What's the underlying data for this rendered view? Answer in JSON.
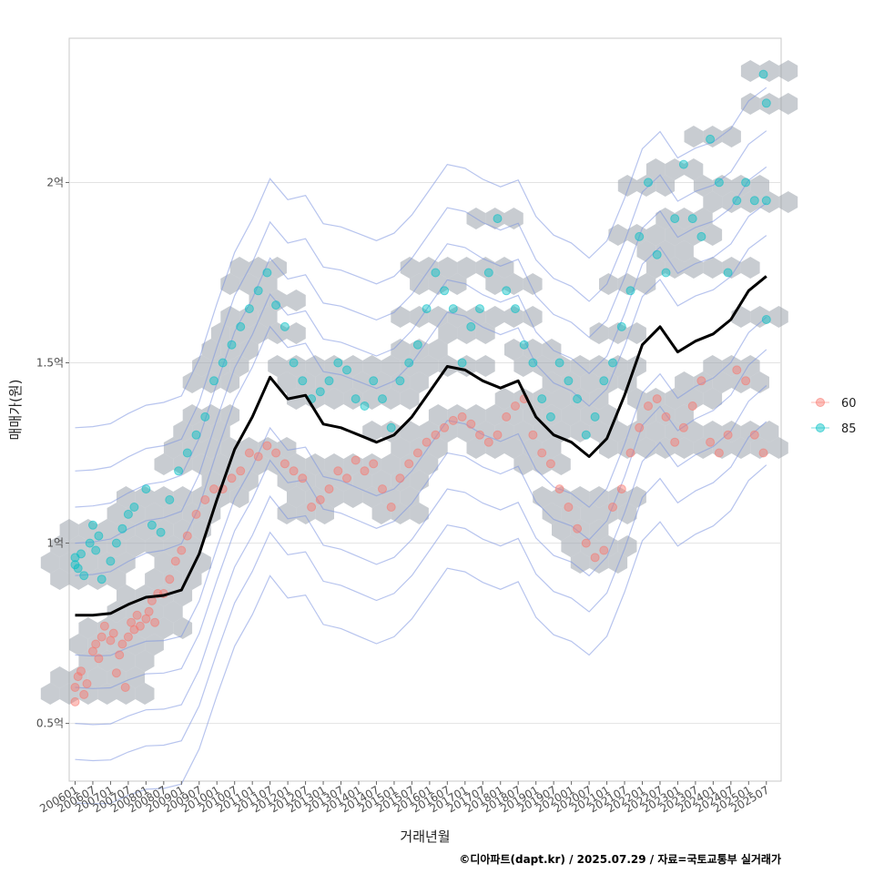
{
  "chart_data": {
    "type": "scatter",
    "title": "",
    "xlabel": "거래년월",
    "ylabel": "매매가(원)",
    "caption": "©디아파트(dapt.kr) / 2025.07.29 / 자료=국토교통부 실거래가",
    "x_ticks": [
      "200601",
      "200607",
      "200701",
      "200707",
      "200801",
      "200807",
      "200901",
      "200907",
      "201001",
      "201007",
      "201101",
      "201107",
      "201201",
      "201207",
      "201301",
      "201307",
      "201401",
      "201407",
      "201501",
      "201507",
      "201601",
      "201607",
      "201701",
      "201707",
      "201801",
      "201807",
      "201901",
      "201907",
      "202001",
      "202007",
      "202101",
      "202107",
      "202201",
      "202207",
      "202301",
      "202307",
      "202401",
      "202407",
      "202501",
      "202507"
    ],
    "y_ticks": [
      {
        "value": 50000000,
        "label": "0.5억"
      },
      {
        "value": 100000000,
        "label": "1억"
      },
      {
        "value": 150000000,
        "label": "1.5억"
      },
      {
        "value": 200000000,
        "label": "2억"
      }
    ],
    "xlim": [
      "200511",
      "202512"
    ],
    "ylim": [
      34000000,
      240000000
    ],
    "grid": true,
    "legend_position": "right",
    "legend": [
      {
        "label": "60",
        "color": "#F8766D"
      },
      {
        "label": "85",
        "color": "#00BFC4"
      }
    ],
    "colors": {
      "hex": "#9aa3ab",
      "contour": "#7b93e0",
      "trend": "#000000",
      "series_60": "#F8766D",
      "series_85": "#00BFC4"
    },
    "trend_line": {
      "name": "moving average",
      "x": [
        "200601",
        "200607",
        "200701",
        "200707",
        "200801",
        "200807",
        "200901",
        "200907",
        "201001",
        "201007",
        "201101",
        "201107",
        "201201",
        "201207",
        "201301",
        "201307",
        "201401",
        "201407",
        "201501",
        "201507",
        "201601",
        "201607",
        "201701",
        "201707",
        "201801",
        "201807",
        "201901",
        "201907",
        "202001",
        "202007",
        "202101",
        "202107",
        "202201",
        "202207",
        "202301",
        "202307",
        "202401",
        "202407",
        "202501",
        "202507"
      ],
      "y": [
        80000000,
        80000000,
        80500000,
        83000000,
        85000000,
        85500000,
        87000000,
        97000000,
        112000000,
        126000000,
        135000000,
        146000000,
        140000000,
        141000000,
        133000000,
        132000000,
        130000000,
        128000000,
        130000000,
        135000000,
        142000000,
        149000000,
        148000000,
        145000000,
        143000000,
        145000000,
        135000000,
        130000000,
        128000000,
        124000000,
        129000000,
        141000000,
        155000000,
        160000000,
        153000000,
        156000000,
        158000000,
        162000000,
        170000000,
        174000000
      ]
    },
    "series": [
      {
        "name": "60",
        "points": [
          [
            "200601",
            56000000
          ],
          [
            "200601",
            60000000
          ],
          [
            "200602",
            63000000
          ],
          [
            "200603",
            64500000
          ],
          [
            "200604",
            58000000
          ],
          [
            "200605",
            61000000
          ],
          [
            "200607",
            70000000
          ],
          [
            "200608",
            72000000
          ],
          [
            "200609",
            68000000
          ],
          [
            "200610",
            74000000
          ],
          [
            "200611",
            77000000
          ],
          [
            "200701",
            73000000
          ],
          [
            "200702",
            75000000
          ],
          [
            "200703",
            64000000
          ],
          [
            "200704",
            69000000
          ],
          [
            "200705",
            72000000
          ],
          [
            "200706",
            60000000
          ],
          [
            "200707",
            74000000
          ],
          [
            "200708",
            78000000
          ],
          [
            "200709",
            76000000
          ],
          [
            "200710",
            80000000
          ],
          [
            "200711",
            77000000
          ],
          [
            "200801",
            79000000
          ],
          [
            "200802",
            81000000
          ],
          [
            "200803",
            84000000
          ],
          [
            "200804",
            78000000
          ],
          [
            "200805",
            86000000
          ],
          [
            "200807",
            86000000
          ],
          [
            "200809",
            90000000
          ],
          [
            "200811",
            95000000
          ],
          [
            "200901",
            98000000
          ],
          [
            "200903",
            102000000
          ],
          [
            "200906",
            108000000
          ],
          [
            "200909",
            112000000
          ],
          [
            "200912",
            115000000
          ],
          [
            "201003",
            115000000
          ],
          [
            "201006",
            118000000
          ],
          [
            "201009",
            120000000
          ],
          [
            "201012",
            125000000
          ],
          [
            "201103",
            124000000
          ],
          [
            "201106",
            127000000
          ],
          [
            "201109",
            125000000
          ],
          [
            "201112",
            122000000
          ],
          [
            "201203",
            120000000
          ],
          [
            "201206",
            118000000
          ],
          [
            "201209",
            110000000
          ],
          [
            "201212",
            112000000
          ],
          [
            "201303",
            115000000
          ],
          [
            "201306",
            120000000
          ],
          [
            "201309",
            118000000
          ],
          [
            "201312",
            123000000
          ],
          [
            "201403",
            120000000
          ],
          [
            "201406",
            122000000
          ],
          [
            "201409",
            115000000
          ],
          [
            "201412",
            110000000
          ],
          [
            "201503",
            118000000
          ],
          [
            "201506",
            122000000
          ],
          [
            "201509",
            125000000
          ],
          [
            "201512",
            128000000
          ],
          [
            "201603",
            130000000
          ],
          [
            "201606",
            132000000
          ],
          [
            "201609",
            134000000
          ],
          [
            "201612",
            135000000
          ],
          [
            "201703",
            133000000
          ],
          [
            "201706",
            130000000
          ],
          [
            "201709",
            128000000
          ],
          [
            "201712",
            130000000
          ],
          [
            "201803",
            135000000
          ],
          [
            "201806",
            138000000
          ],
          [
            "201809",
            140000000
          ],
          [
            "201812",
            130000000
          ],
          [
            "201903",
            125000000
          ],
          [
            "201906",
            122000000
          ],
          [
            "201909",
            115000000
          ],
          [
            "201912",
            110000000
          ],
          [
            "202003",
            104000000
          ],
          [
            "202006",
            100000000
          ],
          [
            "202009",
            96000000
          ],
          [
            "202012",
            98000000
          ],
          [
            "202103",
            110000000
          ],
          [
            "202106",
            115000000
          ],
          [
            "202109",
            125000000
          ],
          [
            "202112",
            132000000
          ],
          [
            "202203",
            138000000
          ],
          [
            "202206",
            140000000
          ],
          [
            "202209",
            135000000
          ],
          [
            "202212",
            128000000
          ],
          [
            "202303",
            132000000
          ],
          [
            "202306",
            138000000
          ],
          [
            "202309",
            145000000
          ],
          [
            "202312",
            128000000
          ],
          [
            "202403",
            125000000
          ],
          [
            "202406",
            130000000
          ],
          [
            "202409",
            148000000
          ],
          [
            "202412",
            145000000
          ],
          [
            "202503",
            130000000
          ],
          [
            "202506",
            125000000
          ]
        ]
      },
      {
        "name": "85",
        "points": [
          [
            "200601",
            94000000
          ],
          [
            "200601",
            96000000
          ],
          [
            "200602",
            93000000
          ],
          [
            "200603",
            97000000
          ],
          [
            "200604",
            91000000
          ],
          [
            "200606",
            100000000
          ],
          [
            "200607",
            105000000
          ],
          [
            "200608",
            98000000
          ],
          [
            "200609",
            102000000
          ],
          [
            "200610",
            90000000
          ],
          [
            "200701",
            95000000
          ],
          [
            "200703",
            100000000
          ],
          [
            "200705",
            104000000
          ],
          [
            "200707",
            108000000
          ],
          [
            "200709",
            110000000
          ],
          [
            "200801",
            115000000
          ],
          [
            "200803",
            105000000
          ],
          [
            "200806",
            103000000
          ],
          [
            "200809",
            112000000
          ],
          [
            "200812",
            120000000
          ],
          [
            "200903",
            125000000
          ],
          [
            "200906",
            130000000
          ],
          [
            "200909",
            135000000
          ],
          [
            "200912",
            145000000
          ],
          [
            "201003",
            150000000
          ],
          [
            "201006",
            155000000
          ],
          [
            "201009",
            160000000
          ],
          [
            "201012",
            165000000
          ],
          [
            "201103",
            170000000
          ],
          [
            "201106",
            175000000
          ],
          [
            "201109",
            166000000
          ],
          [
            "201112",
            160000000
          ],
          [
            "201203",
            150000000
          ],
          [
            "201206",
            145000000
          ],
          [
            "201209",
            140000000
          ],
          [
            "201212",
            142000000
          ],
          [
            "201303",
            145000000
          ],
          [
            "201306",
            150000000
          ],
          [
            "201309",
            148000000
          ],
          [
            "201312",
            140000000
          ],
          [
            "201403",
            138000000
          ],
          [
            "201406",
            145000000
          ],
          [
            "201409",
            140000000
          ],
          [
            "201412",
            132000000
          ],
          [
            "201503",
            145000000
          ],
          [
            "201506",
            150000000
          ],
          [
            "201509",
            155000000
          ],
          [
            "201512",
            165000000
          ],
          [
            "201603",
            175000000
          ],
          [
            "201606",
            170000000
          ],
          [
            "201609",
            165000000
          ],
          [
            "201612",
            150000000
          ],
          [
            "201703",
            160000000
          ],
          [
            "201706",
            165000000
          ],
          [
            "201709",
            175000000
          ],
          [
            "201712",
            190000000
          ],
          [
            "201803",
            170000000
          ],
          [
            "201806",
            165000000
          ],
          [
            "201809",
            155000000
          ],
          [
            "201812",
            150000000
          ],
          [
            "201903",
            140000000
          ],
          [
            "201906",
            135000000
          ],
          [
            "201909",
            150000000
          ],
          [
            "201912",
            145000000
          ],
          [
            "202003",
            140000000
          ],
          [
            "202006",
            130000000
          ],
          [
            "202009",
            135000000
          ],
          [
            "202012",
            145000000
          ],
          [
            "202103",
            150000000
          ],
          [
            "202106",
            160000000
          ],
          [
            "202109",
            170000000
          ],
          [
            "202112",
            185000000
          ],
          [
            "202203",
            200000000
          ],
          [
            "202206",
            180000000
          ],
          [
            "202209",
            175000000
          ],
          [
            "202212",
            190000000
          ],
          [
            "202303",
            205000000
          ],
          [
            "202306",
            190000000
          ],
          [
            "202309",
            185000000
          ],
          [
            "202312",
            212000000
          ],
          [
            "202403",
            200000000
          ],
          [
            "202406",
            175000000
          ],
          [
            "202409",
            195000000
          ],
          [
            "202412",
            200000000
          ],
          [
            "202503",
            195000000
          ],
          [
            "202506",
            230000000
          ],
          [
            "202507",
            222000000
          ],
          [
            "202507",
            195000000
          ],
          [
            "202507",
            162000000
          ]
        ]
      }
    ]
  }
}
